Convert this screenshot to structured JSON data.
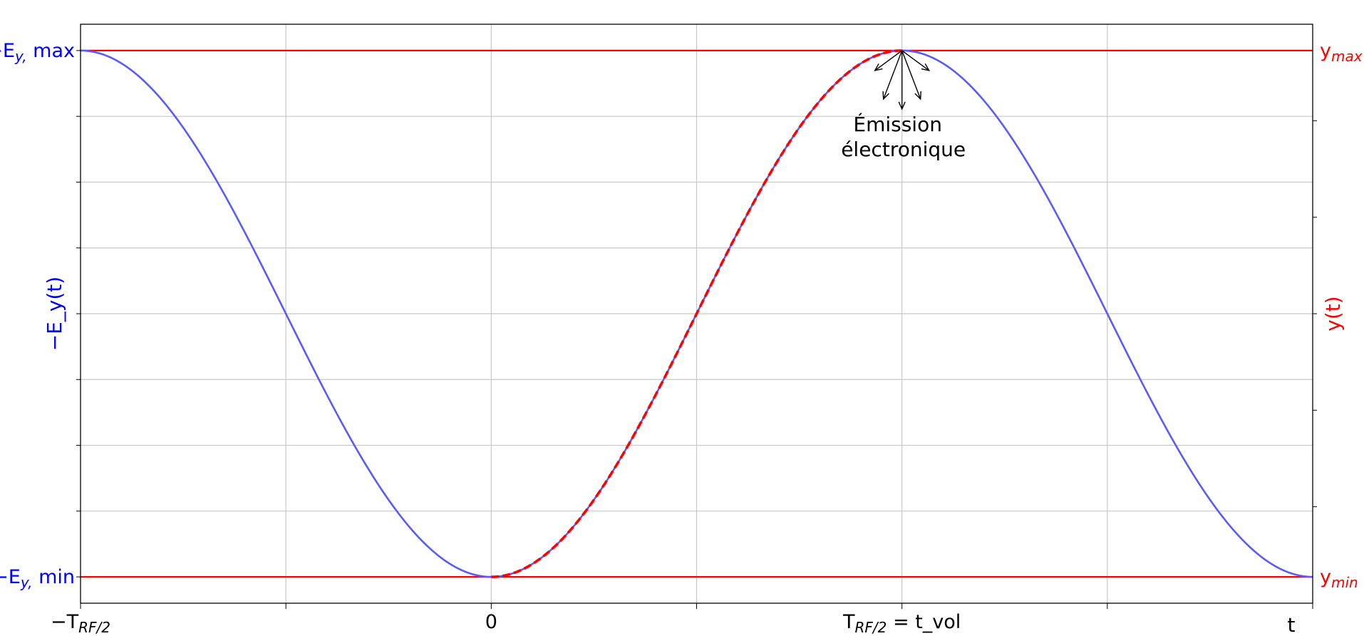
{
  "chart_data": {
    "type": "line",
    "xlabel": "t",
    "x_ticks": [
      {
        "x": -0.5,
        "label": "−T_RF/2"
      },
      {
        "x": 0,
        "label": "0"
      },
      {
        "x": 0.5,
        "label": "T_RF/2 = t_vol"
      }
    ],
    "xlim": [
      -0.5,
      1.0
    ],
    "left_axis": {
      "label": "−E_y(t)",
      "color": "#0000ff",
      "ylim": [
        -1.1,
        1.1
      ],
      "ticks": [
        {
          "y": 1,
          "label": "−E_y, max"
        },
        {
          "y": -1,
          "label": "−E_y, min"
        }
      ]
    },
    "right_axis": {
      "label": "y(t)",
      "color": "#ff0000",
      "ticks": [
        {
          "y": 1,
          "label": "y_max"
        },
        {
          "y": -1,
          "label": "y_min"
        }
      ]
    },
    "grid": true,
    "series": [
      {
        "name": "−E_y(t)",
        "style": "solid",
        "color": "#5b5bf5",
        "x": [
          -0.5,
          -0.45,
          -0.4,
          -0.35,
          -0.3,
          -0.25,
          -0.2,
          -0.15,
          -0.1,
          -0.05,
          0,
          0.05,
          0.1,
          0.15,
          0.2,
          0.25,
          0.3,
          0.35,
          0.4,
          0.45,
          0.5,
          0.55,
          0.6,
          0.65,
          0.7,
          0.75,
          0.8,
          0.85,
          0.9,
          0.95,
          1.0
        ],
        "y": [
          1.0,
          0.951,
          0.809,
          0.588,
          0.309,
          0.0,
          -0.309,
          -0.588,
          -0.809,
          -0.951,
          -1.0,
          -0.951,
          -0.809,
          -0.588,
          -0.309,
          0.0,
          0.309,
          0.588,
          0.809,
          0.951,
          1.0,
          0.951,
          0.809,
          0.588,
          0.309,
          0.0,
          -0.309,
          -0.588,
          -0.809,
          -0.951,
          -1.0
        ]
      },
      {
        "name": "y(t)",
        "style": "dashed",
        "color": "#ff0000",
        "x": [
          0,
          0.05,
          0.1,
          0.15,
          0.2,
          0.25,
          0.3,
          0.35,
          0.4,
          0.45,
          0.5
        ],
        "y": [
          -1.0,
          -0.951,
          -0.809,
          -0.588,
          -0.309,
          0.0,
          0.309,
          0.588,
          0.809,
          0.951,
          1.0
        ]
      }
    ],
    "reference_lines": [
      {
        "y": 1,
        "color": "#ff0000"
      },
      {
        "y": -1,
        "color": "#ff0000"
      }
    ],
    "annotations": [
      {
        "text_lines": [
          "Émission",
          "électronique"
        ],
        "x": 0.5,
        "y": 1
      }
    ]
  }
}
